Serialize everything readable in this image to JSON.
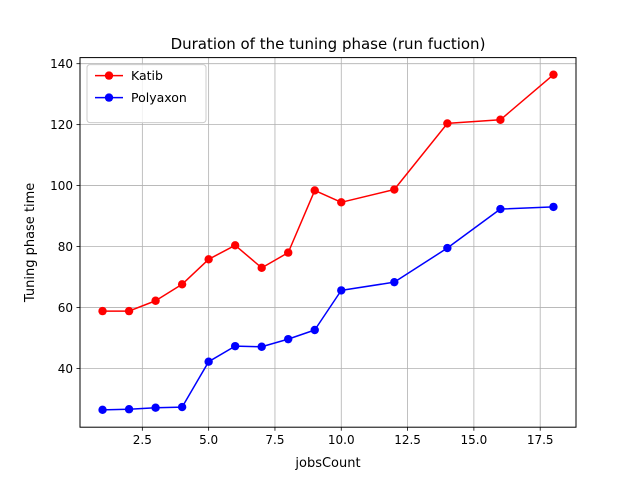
{
  "chart_data": {
    "type": "line",
    "title": "Duration of the tuning phase (run fuction)",
    "xlabel": "jobsCount",
    "ylabel": "Tuning phase time",
    "xlim": [
      0.15,
      18.85
    ],
    "ylim": [
      20.7,
      142.0
    ],
    "xticks": [
      2.5,
      5.0,
      7.5,
      10.0,
      12.5,
      15.0,
      17.5
    ],
    "xtick_labels": [
      "2.5",
      "5.0",
      "7.5",
      "10.0",
      "12.5",
      "15.0",
      "17.5"
    ],
    "yticks": [
      40,
      60,
      80,
      100,
      120,
      140
    ],
    "ytick_labels": [
      "40",
      "60",
      "80",
      "100",
      "120",
      "140"
    ],
    "grid": true,
    "legend_position": "top-left",
    "series": [
      {
        "name": "Katib",
        "color": "#ff0000",
        "x": [
          1,
          2,
          3,
          4,
          5,
          6,
          7,
          8,
          9,
          10,
          12,
          14,
          16,
          18
        ],
        "y": [
          58.8,
          58.8,
          62.2,
          67.6,
          75.8,
          80.4,
          73.0,
          78.0,
          98.4,
          94.5,
          98.7,
          120.4,
          121.6,
          136.4
        ]
      },
      {
        "name": "Polyaxon",
        "color": "#0000ff",
        "x": [
          1,
          2,
          3,
          4,
          5,
          6,
          7,
          8,
          9,
          10,
          12,
          14,
          16,
          18
        ],
        "y": [
          26.4,
          26.6,
          27.1,
          27.3,
          42.2,
          47.3,
          47.1,
          49.6,
          52.6,
          65.6,
          68.3,
          79.5,
          92.3,
          93.0
        ]
      }
    ]
  }
}
